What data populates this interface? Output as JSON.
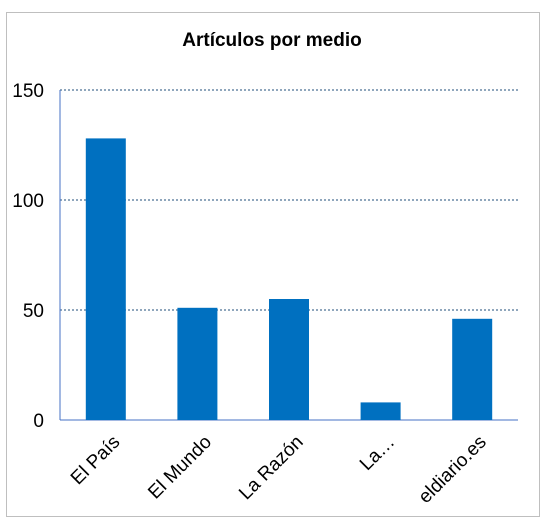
{
  "chart_data": {
    "type": "bar",
    "title": "Artículos por medio",
    "xlabel": "",
    "ylabel": "",
    "categories": [
      "El País",
      "El Mundo",
      "La Razón",
      "La…",
      "eldiario.es"
    ],
    "values": [
      128,
      51,
      55,
      8,
      46
    ],
    "ylim": [
      0,
      150
    ],
    "yticks": [
      0,
      50,
      100,
      150
    ],
    "grid": true,
    "legend": "none",
    "bar_color": "#0070c0",
    "grid_color": "#1f4e79"
  }
}
